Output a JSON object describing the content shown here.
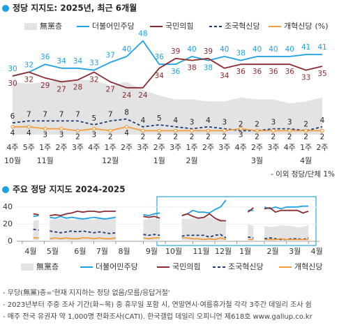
{
  "chart_data": [
    {
      "type": "line",
      "title": "정당 지지도: 2025년, 최근 6개월",
      "legend_unit": "(%)",
      "note": "- 이외 정당/단체 1%",
      "categories": [
        "4주",
        "5주",
        "1주",
        "2주",
        "3주",
        "4주",
        "1주",
        "2주",
        "3주",
        "2주",
        "3주",
        "1주",
        "2주",
        "3주",
        "4주",
        "2주",
        "3주",
        "4주",
        "1주",
        "2주"
      ],
      "months": [
        "10월",
        null,
        "11월",
        null,
        null,
        null,
        "12월",
        null,
        null,
        "1월",
        null,
        "2월",
        null,
        null,
        null,
        "3월",
        null,
        null,
        "4월",
        null
      ],
      "series": [
        {
          "name": "無黨층",
          "color": "#e3e3e3",
          "type": "area",
          "values": [
            27,
            26,
            27,
            28,
            28,
            28,
            25,
            27,
            23,
            20,
            18,
            18,
            17,
            17,
            19,
            18,
            18,
            16,
            17,
            19
          ]
        },
        {
          "name": "더불어민주당",
          "color": "#1ea0e6",
          "values": [
            30,
            32,
            36,
            34,
            34,
            33,
            37,
            40,
            48,
            36,
            36,
            40,
            38,
            40,
            38,
            40,
            40,
            40,
            41,
            41
          ]
        },
        {
          "name": "국민의힘",
          "color": "#8b2a2f",
          "values": [
            30,
            32,
            29,
            27,
            28,
            32,
            27,
            24,
            24,
            34,
            39,
            38,
            39,
            34,
            36,
            36,
            36,
            36,
            33,
            35
          ]
        },
        {
          "name": "조국혁신당",
          "color": "#1f3b73",
          "dashed": true,
          "values": [
            6,
            7,
            7,
            7,
            7,
            5,
            7,
            8,
            4,
            5,
            4,
            3,
            4,
            3,
            2,
            2,
            3,
            3,
            2,
            4
          ]
        },
        {
          "name": "개혁신당",
          "color": "#f39c3c",
          "marker": "circle",
          "values": [
            4,
            4,
            3,
            3,
            2,
            3,
            2,
            4,
            2,
            2,
            2,
            2,
            2,
            2,
            3,
            2,
            2,
            2,
            2,
            2
          ]
        }
      ]
    },
    {
      "type": "line",
      "title": "주요 정당 지지도 2024-2025",
      "x": [
        0,
        1,
        2,
        3,
        4,
        5,
        6,
        7,
        8,
        9,
        10,
        11,
        12,
        13,
        14,
        15,
        16,
        17,
        18,
        19,
        20,
        21,
        22,
        23,
        24,
        25,
        26,
        27,
        28,
        29,
        30,
        31,
        32,
        33,
        34,
        35,
        36,
        37,
        38,
        39,
        40,
        41,
        42,
        43,
        44,
        45,
        46,
        47,
        48,
        49,
        50,
        51,
        52,
        53
      ],
      "xlim": [
        -1,
        54
      ],
      "xticks": [
        {
          "value": 0,
          "label": "4월"
        },
        {
          "value": 4,
          "label": "5월"
        },
        {
          "value": 9,
          "label": "6월"
        },
        {
          "value": 13,
          "label": "7월"
        },
        {
          "value": 17,
          "label": "8월"
        },
        {
          "value": 22,
          "label": "9월"
        },
        {
          "value": 26,
          "label": "10월"
        },
        {
          "value": 31,
          "label": "11월"
        },
        {
          "value": 35,
          "label": "12월"
        },
        {
          "value": 39,
          "label": "1월"
        },
        {
          "value": 44,
          "label": "2월"
        },
        {
          "value": 48,
          "label": "3월"
        },
        {
          "value": 52,
          "label": "4월"
        }
      ],
      "ylim": [
        0,
        50
      ],
      "yticks": [
        0,
        20,
        40
      ],
      "series": [
        {
          "name": "無黨층",
          "color": "#e3e3e3",
          "type": "area",
          "values": [
            null,
            null,
            24,
            25,
            null,
            25,
            26,
            27,
            26,
            25,
            26,
            27,
            26,
            25,
            27,
            26,
            27,
            26,
            null,
            null,
            null,
            null,
            25,
            26,
            27,
            26,
            null,
            null,
            null,
            27,
            26,
            27,
            28,
            28,
            28,
            25,
            27,
            23,
            null,
            null,
            null,
            20,
            18,
            null,
            18,
            17,
            17,
            19,
            18,
            18,
            16,
            17,
            19,
            null
          ]
        },
        {
          "name": "더불어민주당",
          "color": "#1ea0e6",
          "values": [
            null,
            null,
            29,
            30,
            null,
            28,
            27,
            29,
            27,
            28,
            27,
            26,
            27,
            28,
            27,
            26,
            27,
            28,
            null,
            null,
            null,
            null,
            31,
            30,
            32,
            33,
            null,
            null,
            null,
            30,
            32,
            36,
            34,
            34,
            33,
            37,
            40,
            48,
            null,
            null,
            null,
            36,
            36,
            null,
            40,
            38,
            40,
            38,
            40,
            40,
            40,
            41,
            41,
            null
          ]
        },
        {
          "name": "국민의힘",
          "color": "#8b2a2f",
          "values": [
            null,
            null,
            32,
            31,
            null,
            30,
            31,
            30,
            32,
            33,
            35,
            34,
            35,
            35,
            34,
            35,
            35,
            35,
            null,
            null,
            null,
            null,
            29,
            28,
            29,
            27,
            null,
            null,
            null,
            30,
            32,
            29,
            27,
            28,
            32,
            27,
            24,
            24,
            null,
            null,
            null,
            34,
            39,
            null,
            38,
            39,
            34,
            36,
            36,
            36,
            36,
            33,
            35,
            null
          ]
        },
        {
          "name": "조국혁신당",
          "color": "#1f3b73",
          "dashed": true,
          "values": [
            null,
            null,
            14,
            13,
            null,
            12,
            11,
            10,
            11,
            12,
            11,
            12,
            11,
            10,
            11,
            10,
            9,
            10,
            null,
            null,
            null,
            null,
            8,
            7,
            8,
            7,
            null,
            null,
            null,
            6,
            7,
            7,
            7,
            7,
            5,
            7,
            8,
            4,
            null,
            null,
            null,
            5,
            4,
            null,
            3,
            4,
            3,
            2,
            2,
            3,
            3,
            2,
            4,
            null
          ]
        },
        {
          "name": "개혁신당",
          "color": "#f39c3c",
          "values": [
            null,
            null,
            4,
            4,
            null,
            3,
            4,
            3,
            4,
            3,
            3,
            4,
            4,
            3,
            4,
            3,
            3,
            4,
            null,
            null,
            null,
            null,
            4,
            3,
            4,
            4,
            null,
            null,
            null,
            4,
            4,
            3,
            3,
            2,
            3,
            2,
            4,
            2,
            null,
            null,
            null,
            2,
            2,
            null,
            2,
            2,
            2,
            3,
            2,
            2,
            2,
            2,
            2,
            null
          ]
        }
      ]
    }
  ],
  "footnotes": [
    "- 무당(無黨)층='현재 지지하는 정당 없음/모름/응답거절'",
    "- 2023년부터 주중 조사 기간(화~목) 중 휴무일 포함 시, 연말연시·여름휴가철 각각 3주간 데일리 조사 쉼",
    "- 매주 전국 유권자 약 1,000명 전화조사(CATI). 한국갤럽 데일리 오피니언 제618호 www.gallup.co.kr"
  ]
}
